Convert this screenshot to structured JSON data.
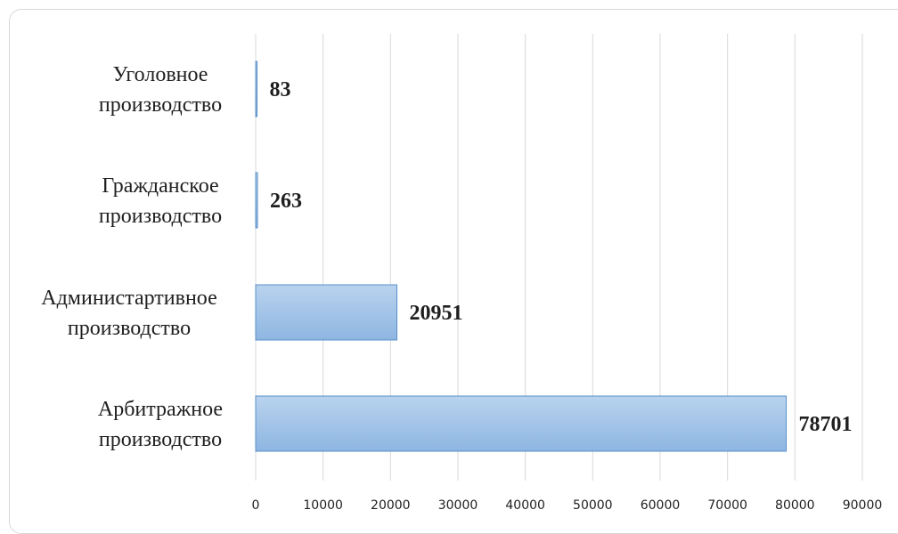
{
  "chart_data": {
    "type": "bar",
    "orientation": "horizontal",
    "categories": [
      [
        "Уголовное",
        "производство"
      ],
      [
        "Гражданское",
        "производство"
      ],
      [
        "Администартивное",
        "производство"
      ],
      [
        "Арбитражное",
        "производство"
      ]
    ],
    "values": [
      83,
      263,
      20951,
      78701
    ],
    "data_labels": [
      "83",
      "263",
      "20951",
      "78701"
    ],
    "x_ticks": [
      "0",
      "10000",
      "20000",
      "30000",
      "40000",
      "50000",
      "60000",
      "70000",
      "80000",
      "90000"
    ],
    "xlim": [
      0,
      90000
    ],
    "grid": "vertical",
    "legend": "none",
    "colors": {
      "bar_top": "#b9d3ee",
      "bar_bottom": "#8eb6e2",
      "bar_border": "#5a8fc8",
      "grid": "#d9d9d9"
    }
  }
}
